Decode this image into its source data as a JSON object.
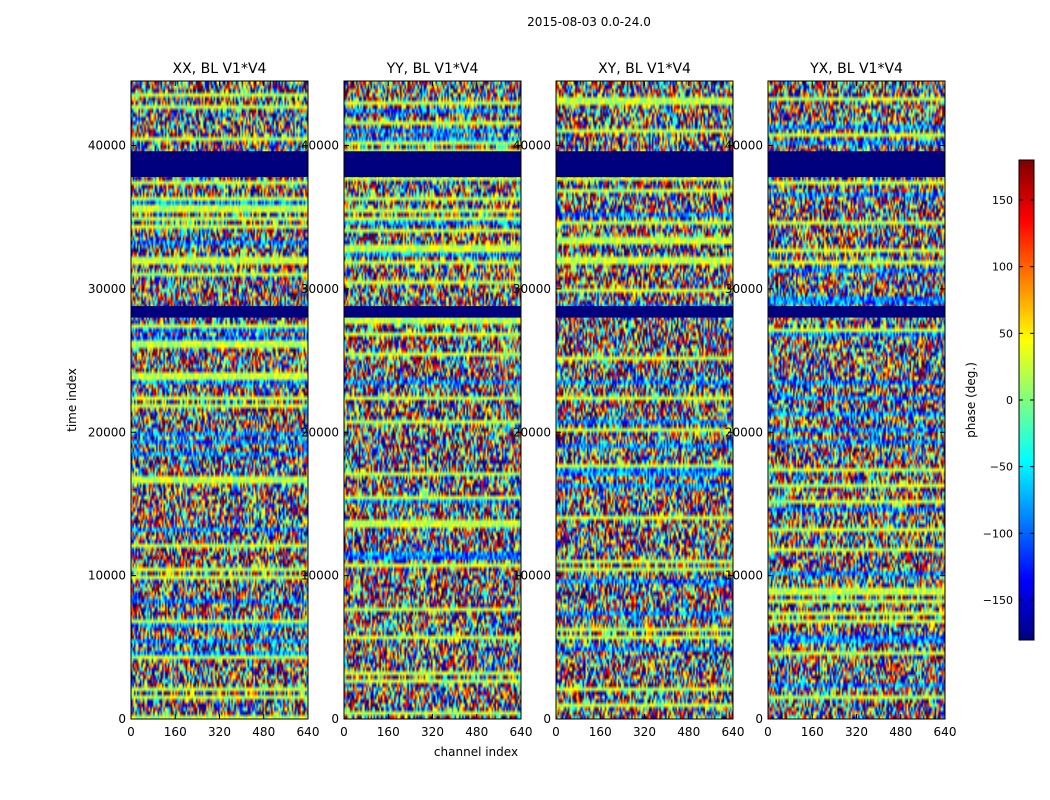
{
  "figure_title": "2015-08-03 0.0-24.0",
  "chart_data": {
    "type": "heatmap",
    "title": "2015-08-03 0.0-24.0",
    "xlabel": "channel index",
    "ylabel": "time index",
    "xlim": [
      0,
      640
    ],
    "ylim": [
      0,
      44500
    ],
    "xticks": [
      "0",
      "160",
      "320",
      "480",
      "640"
    ],
    "yticks": [
      "0",
      "10000",
      "20000",
      "30000",
      "40000"
    ],
    "xtick_values": [
      0,
      160,
      320,
      480,
      640
    ],
    "ytick_values": [
      0,
      10000,
      20000,
      30000,
      40000
    ],
    "panels": [
      {
        "name": "XX",
        "title": "XX, BL V1*V4"
      },
      {
        "name": "YY",
        "title": "YY, BL V1*V4"
      },
      {
        "name": "XY",
        "title": "XY, BL V1*V4"
      },
      {
        "name": "YX",
        "title": "YX, BL V1*V4"
      }
    ],
    "colorbar": {
      "label": "phase (deg.)",
      "range": [
        -180,
        180
      ],
      "colormap": "jet",
      "ticks": [
        "150",
        "100",
        "50",
        "0",
        "−50",
        "−100",
        "−150"
      ],
      "tick_values": [
        150,
        100,
        50,
        0,
        -50,
        -100,
        -150
      ]
    },
    "flagged_time_ranges": [
      [
        28000,
        28800
      ],
      [
        37800,
        39600
      ]
    ]
  },
  "colors": {
    "jet": [
      "#00007f",
      "#0000ff",
      "#0080ff",
      "#00ffff",
      "#80ff80",
      "#ffff00",
      "#ff8000",
      "#ff0000",
      "#7f0000"
    ],
    "flagged": "#00007f",
    "axes": "#000000"
  }
}
